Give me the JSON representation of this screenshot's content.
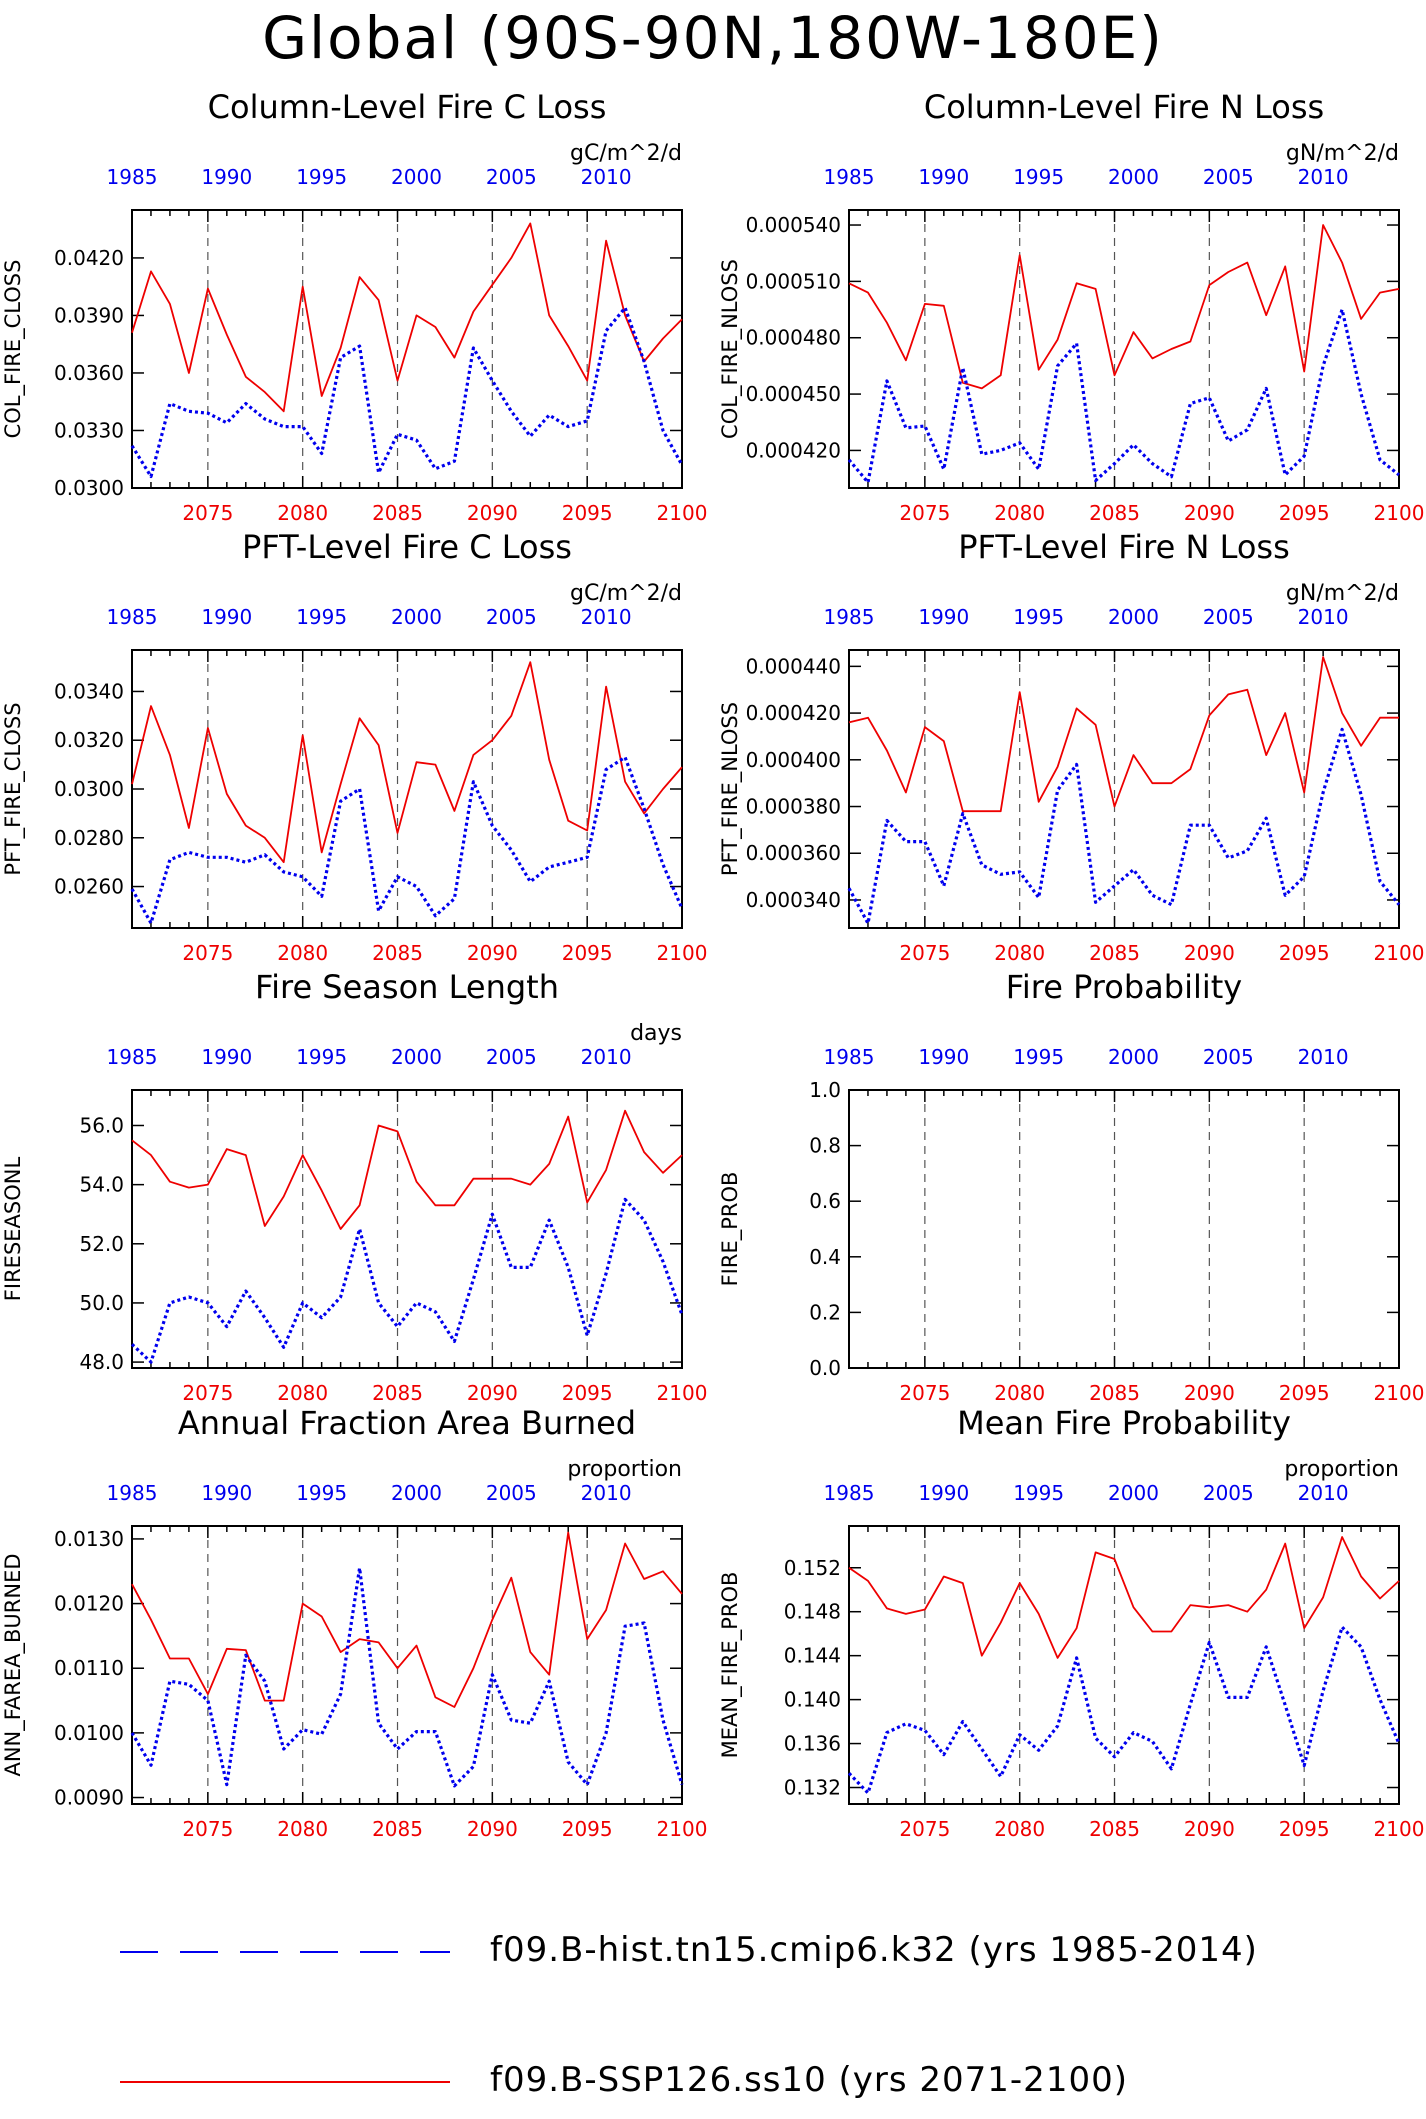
{
  "title": "Global (90S-90N,180W-180E)",
  "colors": {
    "hist": "#0000ee",
    "ssp": "#ee0000",
    "axis": "#000000",
    "grid": "#555555"
  },
  "axes": {
    "bottom_ticks": [
      2075,
      2080,
      2085,
      2090,
      2095,
      2100
    ],
    "top_ticks": [
      1985,
      1990,
      1995,
      2000,
      2005,
      2010
    ]
  },
  "legend": [
    {
      "key": "hist",
      "style": "dashed-blue",
      "label": "f09.B-hist.tn15.cmip6.k32 (yrs 1985-2014)"
    },
    {
      "key": "ssp",
      "style": "solid-red",
      "label": "f09.B-SSP126.ss10 (yrs 2071-2100)"
    }
  ],
  "chart_data": [
    {
      "type": "line",
      "title": "Column-Level Fire C Loss",
      "ylabel": "COL_FIRE_CLOSS",
      "units": "gC/m^2/d",
      "ylim": [
        0.03,
        0.0445
      ],
      "yticks": [
        "0.0300",
        "0.0330",
        "0.0360",
        "0.0390",
        "0.0420"
      ],
      "x": [
        2071,
        2072,
        2073,
        2074,
        2075,
        2076,
        2077,
        2078,
        2079,
        2080,
        2081,
        2082,
        2083,
        2084,
        2085,
        2086,
        2087,
        2088,
        2089,
        2090,
        2091,
        2092,
        2093,
        2094,
        2095,
        2096,
        2097,
        2098,
        2099,
        2100
      ],
      "x2": [
        1985,
        1986,
        1987,
        1988,
        1989,
        1990,
        1991,
        1992,
        1993,
        1994,
        1995,
        1996,
        1997,
        1998,
        1999,
        2000,
        2001,
        2002,
        2003,
        2004,
        2005,
        2006,
        2007,
        2008,
        2009,
        2010,
        2011,
        2012,
        2013,
        2014
      ],
      "series": [
        {
          "name": "f09.B-SSP126.ss10 (yrs 2071-2100)",
          "key": "ssp",
          "values": [
            0.0381,
            0.0413,
            0.0396,
            0.036,
            0.0404,
            0.038,
            0.0358,
            0.035,
            0.034,
            0.0405,
            0.0348,
            0.0373,
            0.041,
            0.0398,
            0.0356,
            0.039,
            0.0384,
            0.0368,
            0.0392,
            0.0406,
            0.042,
            0.0438,
            0.039,
            0.0374,
            0.0356,
            0.0429,
            0.039,
            0.0366,
            0.0378,
            0.0388
          ]
        },
        {
          "name": "f09.B-hist.tn15.cmip6.k32 (yrs 1985-2014)",
          "key": "hist",
          "values": [
            0.0322,
            0.0306,
            0.0344,
            0.034,
            0.0339,
            0.0334,
            0.0344,
            0.0336,
            0.0332,
            0.0332,
            0.0318,
            0.0368,
            0.0374,
            0.0308,
            0.0328,
            0.0325,
            0.031,
            0.0314,
            0.0373,
            0.0356,
            0.034,
            0.0327,
            0.0338,
            0.0332,
            0.0335,
            0.0382,
            0.0394,
            0.0366,
            0.033,
            0.0312
          ]
        }
      ]
    },
    {
      "type": "line",
      "title": "Column-Level Fire N Loss",
      "ylabel": "COL_FIRE_NLOSS",
      "units": "gN/m^2/d",
      "ylim": [
        0.0004,
        0.000548
      ],
      "yticks": [
        "0.000420",
        "0.000450",
        "0.000480",
        "0.000510",
        "0.000540"
      ],
      "x": [
        2071,
        2072,
        2073,
        2074,
        2075,
        2076,
        2077,
        2078,
        2079,
        2080,
        2081,
        2082,
        2083,
        2084,
        2085,
        2086,
        2087,
        2088,
        2089,
        2090,
        2091,
        2092,
        2093,
        2094,
        2095,
        2096,
        2097,
        2098,
        2099,
        2100
      ],
      "x2": [
        1985,
        1986,
        1987,
        1988,
        1989,
        1990,
        1991,
        1992,
        1993,
        1994,
        1995,
        1996,
        1997,
        1998,
        1999,
        2000,
        2001,
        2002,
        2003,
        2004,
        2005,
        2006,
        2007,
        2008,
        2009,
        2010,
        2011,
        2012,
        2013,
        2014
      ],
      "series": [
        {
          "name": "f09.B-SSP126.ss10 (yrs 2071-2100)",
          "key": "ssp",
          "values": [
            0.000509,
            0.000504,
            0.000488,
            0.000468,
            0.000498,
            0.000497,
            0.000456,
            0.000453,
            0.00046,
            0.000524,
            0.000463,
            0.000479,
            0.000509,
            0.000506,
            0.00046,
            0.000483,
            0.000469,
            0.000474,
            0.000478,
            0.000508,
            0.000515,
            0.00052,
            0.000492,
            0.000518,
            0.000462,
            0.00054,
            0.00052,
            0.00049,
            0.000504,
            0.000506
          ]
        },
        {
          "name": "f09.B-hist.tn15.cmip6.k32 (yrs 1985-2014)",
          "key": "hist",
          "values": [
            0.000415,
            0.000403,
            0.000457,
            0.000432,
            0.000433,
            0.00041,
            0.000464,
            0.000418,
            0.00042,
            0.000424,
            0.00041,
            0.000465,
            0.000477,
            0.000404,
            0.000413,
            0.000423,
            0.000413,
            0.000406,
            0.000445,
            0.000448,
            0.000425,
            0.000431,
            0.000453,
            0.000407,
            0.000417,
            0.000465,
            0.000495,
            0.00045,
            0.000415,
            0.000407
          ]
        }
      ]
    },
    {
      "type": "line",
      "title": "PFT-Level Fire C Loss",
      "ylabel": "PFT_FIRE_CLOSS",
      "units": "gC/m^2/d",
      "ylim": [
        0.0243,
        0.0357
      ],
      "yticks": [
        "0.0260",
        "0.0280",
        "0.0300",
        "0.0320",
        "0.0340"
      ],
      "x": [
        2071,
        2072,
        2073,
        2074,
        2075,
        2076,
        2077,
        2078,
        2079,
        2080,
        2081,
        2082,
        2083,
        2084,
        2085,
        2086,
        2087,
        2088,
        2089,
        2090,
        2091,
        2092,
        2093,
        2094,
        2095,
        2096,
        2097,
        2098,
        2099,
        2100
      ],
      "x2": [
        1985,
        1986,
        1987,
        1988,
        1989,
        1990,
        1991,
        1992,
        1993,
        1994,
        1995,
        1996,
        1997,
        1998,
        1999,
        2000,
        2001,
        2002,
        2003,
        2004,
        2005,
        2006,
        2007,
        2008,
        2009,
        2010,
        2011,
        2012,
        2013,
        2014
      ],
      "series": [
        {
          "name": "f09.B-SSP126.ss10 (yrs 2071-2100)",
          "key": "ssp",
          "values": [
            0.0302,
            0.0334,
            0.0314,
            0.0284,
            0.0325,
            0.0298,
            0.0285,
            0.028,
            0.027,
            0.0322,
            0.0274,
            0.0302,
            0.0329,
            0.0318,
            0.0282,
            0.0311,
            0.031,
            0.0291,
            0.0314,
            0.032,
            0.033,
            0.0352,
            0.0312,
            0.0287,
            0.0283,
            0.0342,
            0.0303,
            0.029,
            0.03,
            0.0309
          ]
        },
        {
          "name": "f09.B-hist.tn15.cmip6.k32 (yrs 1985-2014)",
          "key": "hist",
          "values": [
            0.0259,
            0.0245,
            0.0271,
            0.0274,
            0.0272,
            0.0272,
            0.027,
            0.0273,
            0.0266,
            0.0264,
            0.0256,
            0.0295,
            0.03,
            0.025,
            0.0264,
            0.026,
            0.0248,
            0.0255,
            0.0303,
            0.0285,
            0.0275,
            0.0262,
            0.0268,
            0.027,
            0.0272,
            0.0308,
            0.0313,
            0.0292,
            0.0269,
            0.0251
          ]
        }
      ]
    },
    {
      "type": "line",
      "title": "PFT-Level Fire N Loss",
      "ylabel": "PFT_FIRE_NLOSS",
      "units": "gN/m^2/d",
      "ylim": [
        0.000328,
        0.000447
      ],
      "yticks": [
        "0.000340",
        "0.000360",
        "0.000380",
        "0.000400",
        "0.000420",
        "0.000440"
      ],
      "x": [
        2071,
        2072,
        2073,
        2074,
        2075,
        2076,
        2077,
        2078,
        2079,
        2080,
        2081,
        2082,
        2083,
        2084,
        2085,
        2086,
        2087,
        2088,
        2089,
        2090,
        2091,
        2092,
        2093,
        2094,
        2095,
        2096,
        2097,
        2098,
        2099,
        2100
      ],
      "x2": [
        1985,
        1986,
        1987,
        1988,
        1989,
        1990,
        1991,
        1992,
        1993,
        1994,
        1995,
        1996,
        1997,
        1998,
        1999,
        2000,
        2001,
        2002,
        2003,
        2004,
        2005,
        2006,
        2007,
        2008,
        2009,
        2010,
        2011,
        2012,
        2013,
        2014
      ],
      "series": [
        {
          "name": "f09.B-SSP126.ss10 (yrs 2071-2100)",
          "key": "ssp",
          "values": [
            0.000416,
            0.000418,
            0.000404,
            0.000386,
            0.000414,
            0.000408,
            0.000378,
            0.000378,
            0.000378,
            0.000429,
            0.000382,
            0.000397,
            0.000422,
            0.000415,
            0.00038,
            0.000402,
            0.00039,
            0.00039,
            0.000396,
            0.000419,
            0.000428,
            0.00043,
            0.000402,
            0.00042,
            0.000386,
            0.000444,
            0.00042,
            0.000406,
            0.000418,
            0.000418
          ]
        },
        {
          "name": "f09.B-hist.tn15.cmip6.k32 (yrs 1985-2014)",
          "key": "hist",
          "values": [
            0.000345,
            0.00033,
            0.000374,
            0.000365,
            0.000365,
            0.000346,
            0.000377,
            0.000355,
            0.000351,
            0.000352,
            0.000341,
            0.000387,
            0.000398,
            0.000339,
            0.000346,
            0.000353,
            0.000342,
            0.000338,
            0.000372,
            0.000372,
            0.000358,
            0.000361,
            0.000375,
            0.000342,
            0.00035,
            0.000386,
            0.000413,
            0.000385,
            0.000348,
            0.000338
          ]
        }
      ]
    },
    {
      "type": "line",
      "title": "Fire Season Length",
      "ylabel": "FIRESEASONL",
      "units": "days",
      "ylim": [
        47.8,
        57.2
      ],
      "yticks": [
        "48.0",
        "50.0",
        "52.0",
        "54.0",
        "56.0"
      ],
      "x": [
        2071,
        2072,
        2073,
        2074,
        2075,
        2076,
        2077,
        2078,
        2079,
        2080,
        2081,
        2082,
        2083,
        2084,
        2085,
        2086,
        2087,
        2088,
        2089,
        2090,
        2091,
        2092,
        2093,
        2094,
        2095,
        2096,
        2097,
        2098,
        2099,
        2100
      ],
      "x2": [
        1985,
        1986,
        1987,
        1988,
        1989,
        1990,
        1991,
        1992,
        1993,
        1994,
        1995,
        1996,
        1997,
        1998,
        1999,
        2000,
        2001,
        2002,
        2003,
        2004,
        2005,
        2006,
        2007,
        2008,
        2009,
        2010,
        2011,
        2012,
        2013,
        2014
      ],
      "series": [
        {
          "name": "f09.B-SSP126.ss10 (yrs 2071-2100)",
          "key": "ssp",
          "values": [
            55.5,
            55.0,
            54.1,
            53.9,
            54.0,
            55.2,
            55.0,
            52.6,
            53.6,
            55.0,
            53.8,
            52.5,
            53.3,
            56.0,
            55.8,
            54.1,
            53.3,
            53.3,
            54.2,
            54.2,
            54.2,
            54.0,
            54.7,
            56.3,
            53.4,
            54.5,
            56.5,
            55.1,
            54.4,
            55.0
          ]
        },
        {
          "name": "f09.B-hist.tn15.cmip6.k32 (yrs 1985-2014)",
          "key": "hist",
          "values": [
            48.6,
            48.0,
            50.0,
            50.2,
            50.0,
            49.2,
            50.4,
            49.5,
            48.5,
            50.0,
            49.5,
            50.2,
            52.5,
            50.0,
            49.2,
            50.0,
            49.7,
            48.7,
            50.8,
            53.0,
            51.2,
            51.2,
            52.8,
            51.2,
            48.9,
            51.0,
            53.5,
            52.8,
            51.4,
            49.6
          ]
        }
      ]
    },
    {
      "type": "line",
      "title": "Fire Probability",
      "ylabel": "FIRE_PROB",
      "units": "",
      "ylim": [
        0,
        1
      ],
      "yticks": [
        "0.0",
        "0.2",
        "0.4",
        "0.6",
        "0.8",
        "1.0"
      ],
      "x": [],
      "x2": [],
      "series": []
    },
    {
      "type": "line",
      "title": "Annual Fraction Area Burned",
      "ylabel": "ANN_FAREA_BURNED",
      "units": "proportion",
      "ylim": [
        0.0089,
        0.0132
      ],
      "yticks": [
        "0.0090",
        "0.0100",
        "0.0110",
        "0.0120",
        "0.0130"
      ],
      "x": [
        2071,
        2072,
        2073,
        2074,
        2075,
        2076,
        2077,
        2078,
        2079,
        2080,
        2081,
        2082,
        2083,
        2084,
        2085,
        2086,
        2087,
        2088,
        2089,
        2090,
        2091,
        2092,
        2093,
        2094,
        2095,
        2096,
        2097,
        2098,
        2099,
        2100
      ],
      "x2": [
        1985,
        1986,
        1987,
        1988,
        1989,
        1990,
        1991,
        1992,
        1993,
        1994,
        1995,
        1996,
        1997,
        1998,
        1999,
        2000,
        2001,
        2002,
        2003,
        2004,
        2005,
        2006,
        2007,
        2008,
        2009,
        2010,
        2011,
        2012,
        2013,
        2014
      ],
      "series": [
        {
          "name": "f09.B-SSP126.ss10 (yrs 2071-2100)",
          "key": "ssp",
          "values": [
            0.0123,
            0.01175,
            0.01115,
            0.01115,
            0.0106,
            0.0113,
            0.01128,
            0.0105,
            0.0105,
            0.012,
            0.0118,
            0.01125,
            0.01145,
            0.0114,
            0.011,
            0.01135,
            0.01055,
            0.0104,
            0.011,
            0.01175,
            0.0124,
            0.01125,
            0.0109,
            0.0131,
            0.01145,
            0.0119,
            0.01293,
            0.01238,
            0.0125,
            0.01215
          ]
        },
        {
          "name": "f09.B-hist.tn15.cmip6.k32 (yrs 1985-2014)",
          "key": "hist",
          "values": [
            0.01,
            0.0095,
            0.0108,
            0.01075,
            0.0105,
            0.0092,
            0.0112,
            0.0108,
            0.00975,
            0.01005,
            0.00998,
            0.0106,
            0.01255,
            0.01015,
            0.00975,
            0.01002,
            0.01002,
            0.00918,
            0.00948,
            0.0109,
            0.0102,
            0.01015,
            0.0108,
            0.00955,
            0.0092,
            0.01,
            0.01165,
            0.0117,
            0.0102,
            0.0092
          ]
        }
      ]
    },
    {
      "type": "line",
      "title": "Mean Fire Probability",
      "ylabel": "MEAN_FIRE_PROB",
      "units": "proportion",
      "ylim": [
        0.1305,
        0.1558
      ],
      "yticks": [
        "0.132",
        "0.136",
        "0.140",
        "0.144",
        "0.148",
        "0.152"
      ],
      "x": [
        2071,
        2072,
        2073,
        2074,
        2075,
        2076,
        2077,
        2078,
        2079,
        2080,
        2081,
        2082,
        2083,
        2084,
        2085,
        2086,
        2087,
        2088,
        2089,
        2090,
        2091,
        2092,
        2093,
        2094,
        2095,
        2096,
        2097,
        2098,
        2099,
        2100
      ],
      "x2": [
        1985,
        1986,
        1987,
        1988,
        1989,
        1990,
        1991,
        1992,
        1993,
        1994,
        1995,
        1996,
        1997,
        1998,
        1999,
        2000,
        2001,
        2002,
        2003,
        2004,
        2005,
        2006,
        2007,
        2008,
        2009,
        2010,
        2011,
        2012,
        2013,
        2014
      ],
      "series": [
        {
          "name": "f09.B-SSP126.ss10 (yrs 2071-2100)",
          "key": "ssp",
          "values": [
            0.152,
            0.1508,
            0.1483,
            0.1478,
            0.1482,
            0.1512,
            0.1506,
            0.144,
            0.147,
            0.1506,
            0.1478,
            0.1438,
            0.1465,
            0.1534,
            0.1528,
            0.1484,
            0.1462,
            0.1462,
            0.1486,
            0.1484,
            0.1486,
            0.148,
            0.15,
            0.1542,
            0.1465,
            0.1493,
            0.1548,
            0.1512,
            0.1492,
            0.1508
          ]
        },
        {
          "name": "f09.B-hist.tn15.cmip6.k32 (yrs 1985-2014)",
          "key": "hist",
          "values": [
            0.1333,
            0.1315,
            0.137,
            0.1378,
            0.1372,
            0.135,
            0.138,
            0.1355,
            0.133,
            0.1368,
            0.1354,
            0.1376,
            0.1438,
            0.1365,
            0.1348,
            0.137,
            0.1362,
            0.1337,
            0.1396,
            0.1452,
            0.1402,
            0.1402,
            0.1448,
            0.1395,
            0.134,
            0.1408,
            0.1466,
            0.1448,
            0.14,
            0.136
          ]
        }
      ]
    }
  ]
}
